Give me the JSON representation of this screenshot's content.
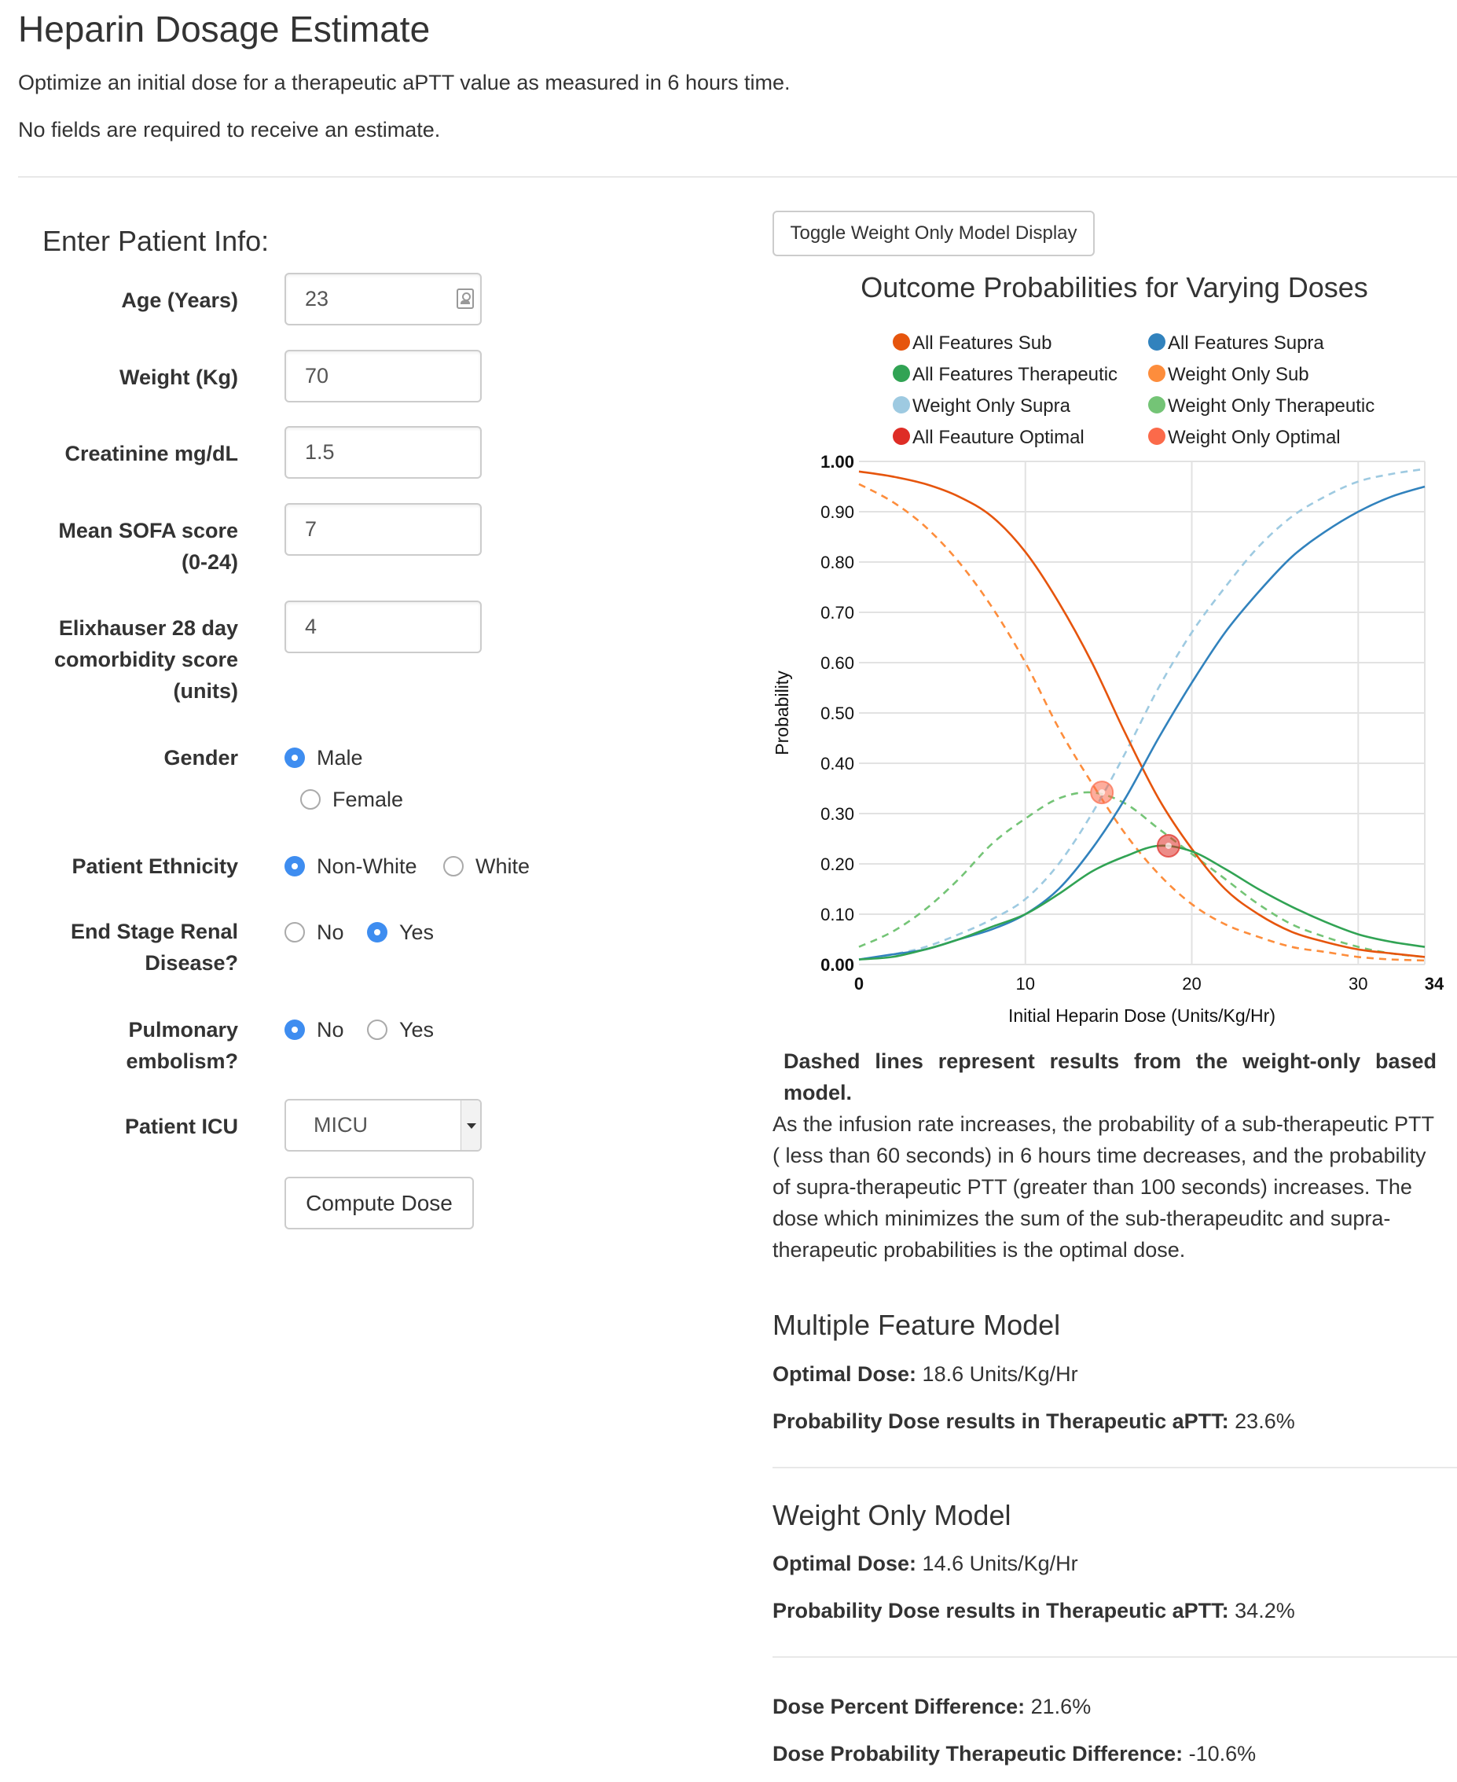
{
  "page": {
    "title": "Heparin Dosage Estimate",
    "subtitle": "Optimize an initial dose for a therapeutic aPTT value as measured in 6 hours time.",
    "note": "No fields are required to receive an estimate."
  },
  "form": {
    "title": "Enter Patient Info:",
    "age": {
      "label": "Age (Years)",
      "value": "23"
    },
    "weight": {
      "label": "Weight (Kg)",
      "value": "70"
    },
    "creatinine": {
      "label": "Creatinine mg/dL",
      "value": "1.5"
    },
    "sofa": {
      "label_line1": "Mean SOFA score",
      "label_line2": "(0-24)",
      "value": "7"
    },
    "elixhauser": {
      "label_line1": "Elixhauser 28 day",
      "label_line2": "comorbidity score",
      "label_line3": "(units)",
      "value": "4"
    },
    "gender": {
      "label": "Gender",
      "options": [
        "Male",
        "Female"
      ],
      "selected": "Male"
    },
    "ethnicity": {
      "label": "Patient Ethnicity",
      "options": [
        "Non-White",
        "White"
      ],
      "selected": "Non-White"
    },
    "esrd": {
      "label_line1": "End Stage Renal",
      "label_line2": "Disease?",
      "options": [
        "No",
        "Yes"
      ],
      "selected": "Yes"
    },
    "pe": {
      "label_line1": "Pulmonary",
      "label_line2": "embolism?",
      "options": [
        "No",
        "Yes"
      ],
      "selected": "No"
    },
    "icu": {
      "label": "Patient ICU",
      "value": "MICU"
    },
    "compute_label": "Compute Dose"
  },
  "toggle_label": "Toggle Weight Only Model Display",
  "chart_data": {
    "type": "line",
    "title": "Outcome Probabilities for Varying Doses",
    "xlabel": "Initial Heparin Dose (Units/Kg/Hr)",
    "ylabel": "Probability",
    "xlim": [
      0,
      34
    ],
    "ylim": [
      0,
      1
    ],
    "x_ticks": [
      "0",
      "10",
      "20",
      "30",
      "34"
    ],
    "y_ticks": [
      "0.00",
      "0.10",
      "0.20",
      "0.30",
      "0.40",
      "0.50",
      "0.60",
      "0.70",
      "0.80",
      "0.90",
      "1.00"
    ],
    "grid": true,
    "x": [
      0,
      2,
      4,
      6,
      8,
      10,
      12,
      14,
      16,
      18,
      20,
      22,
      24,
      26,
      28,
      30,
      32,
      34
    ],
    "series": [
      {
        "name": "All Features Sub",
        "color": "#e6550d",
        "dashed": false,
        "values": [
          0.98,
          0.97,
          0.955,
          0.93,
          0.89,
          0.82,
          0.72,
          0.6,
          0.46,
          0.33,
          0.23,
          0.15,
          0.1,
          0.065,
          0.045,
          0.03,
          0.022,
          0.015
        ]
      },
      {
        "name": "All Features Supra",
        "color": "#3182bd",
        "dashed": false,
        "values": [
          0.01,
          0.02,
          0.03,
          0.05,
          0.07,
          0.1,
          0.15,
          0.23,
          0.33,
          0.45,
          0.56,
          0.66,
          0.74,
          0.81,
          0.86,
          0.9,
          0.93,
          0.95
        ]
      },
      {
        "name": "All Features Therapeutic",
        "color": "#31a354",
        "dashed": false,
        "values": [
          0.01,
          0.015,
          0.03,
          0.05,
          0.075,
          0.1,
          0.14,
          0.185,
          0.215,
          0.236,
          0.225,
          0.19,
          0.15,
          0.115,
          0.085,
          0.06,
          0.045,
          0.035
        ]
      },
      {
        "name": "Weight Only Sub",
        "color": "#fd8d3c",
        "dashed": true,
        "values": [
          0.955,
          0.92,
          0.87,
          0.8,
          0.71,
          0.6,
          0.47,
          0.36,
          0.26,
          0.18,
          0.12,
          0.08,
          0.055,
          0.035,
          0.025,
          0.015,
          0.01,
          0.008
        ]
      },
      {
        "name": "Weight Only Supra",
        "color": "#9ecae1",
        "dashed": true,
        "values": [
          0.01,
          0.02,
          0.035,
          0.06,
          0.09,
          0.13,
          0.2,
          0.3,
          0.42,
          0.55,
          0.66,
          0.75,
          0.83,
          0.89,
          0.93,
          0.96,
          0.975,
          0.985
        ]
      },
      {
        "name": "Weight Only Therapeutic",
        "color": "#74c476",
        "dashed": true,
        "values": [
          0.035,
          0.065,
          0.11,
          0.17,
          0.24,
          0.29,
          0.33,
          0.342,
          0.32,
          0.27,
          0.22,
          0.17,
          0.12,
          0.08,
          0.055,
          0.035,
          0.022,
          0.015
        ]
      },
      {
        "name": "All Feauture Optimal",
        "color": "#de2d26",
        "marker": true,
        "x": 18.6,
        "y": 0.236
      },
      {
        "name": "Weight Only Optimal",
        "color": "#fb6a4a",
        "marker": true,
        "x": 14.6,
        "y": 0.342
      }
    ],
    "legend": [
      "All Features Sub",
      "All Features Supra",
      "All Features Therapeutic",
      "Weight Only Sub",
      "Weight Only Supra",
      "Weight Only Therapeutic",
      "All Feauture Optimal",
      "Weight Only Optimal"
    ]
  },
  "notes": {
    "bold": "Dashed lines represent results from the weight-only based model.",
    "text": "As the infusion rate increases, the probability of a sub-therapeutic PTT ( less than 60 seconds) in 6 hours time decreases, and the probability of supra-therapeutic PTT (greater than 100 seconds) increases. The dose which minimizes the sum of the sub-therapeuditc and supra-therapeutic probabilities is the optimal dose."
  },
  "multi_model": {
    "title": "Multiple Feature Model",
    "dose_label": "Optimal Dose:",
    "dose_value": "18.6 Units/Kg/Hr",
    "prob_label": "Probability Dose results in Therapeutic aPTT:",
    "prob_value": "23.6%"
  },
  "weight_model": {
    "title": "Weight Only Model",
    "dose_label": "Optimal Dose:",
    "dose_value": "14.6 Units/Kg/Hr",
    "prob_label": "Probability Dose results in Therapeutic aPTT:",
    "prob_value": "34.2%"
  },
  "diff": {
    "dose_label": "Dose Percent Difference:",
    "dose_value": "21.6%",
    "prob_label": "Dose Probability Therapeutic Difference:",
    "prob_value": "-10.6%"
  }
}
